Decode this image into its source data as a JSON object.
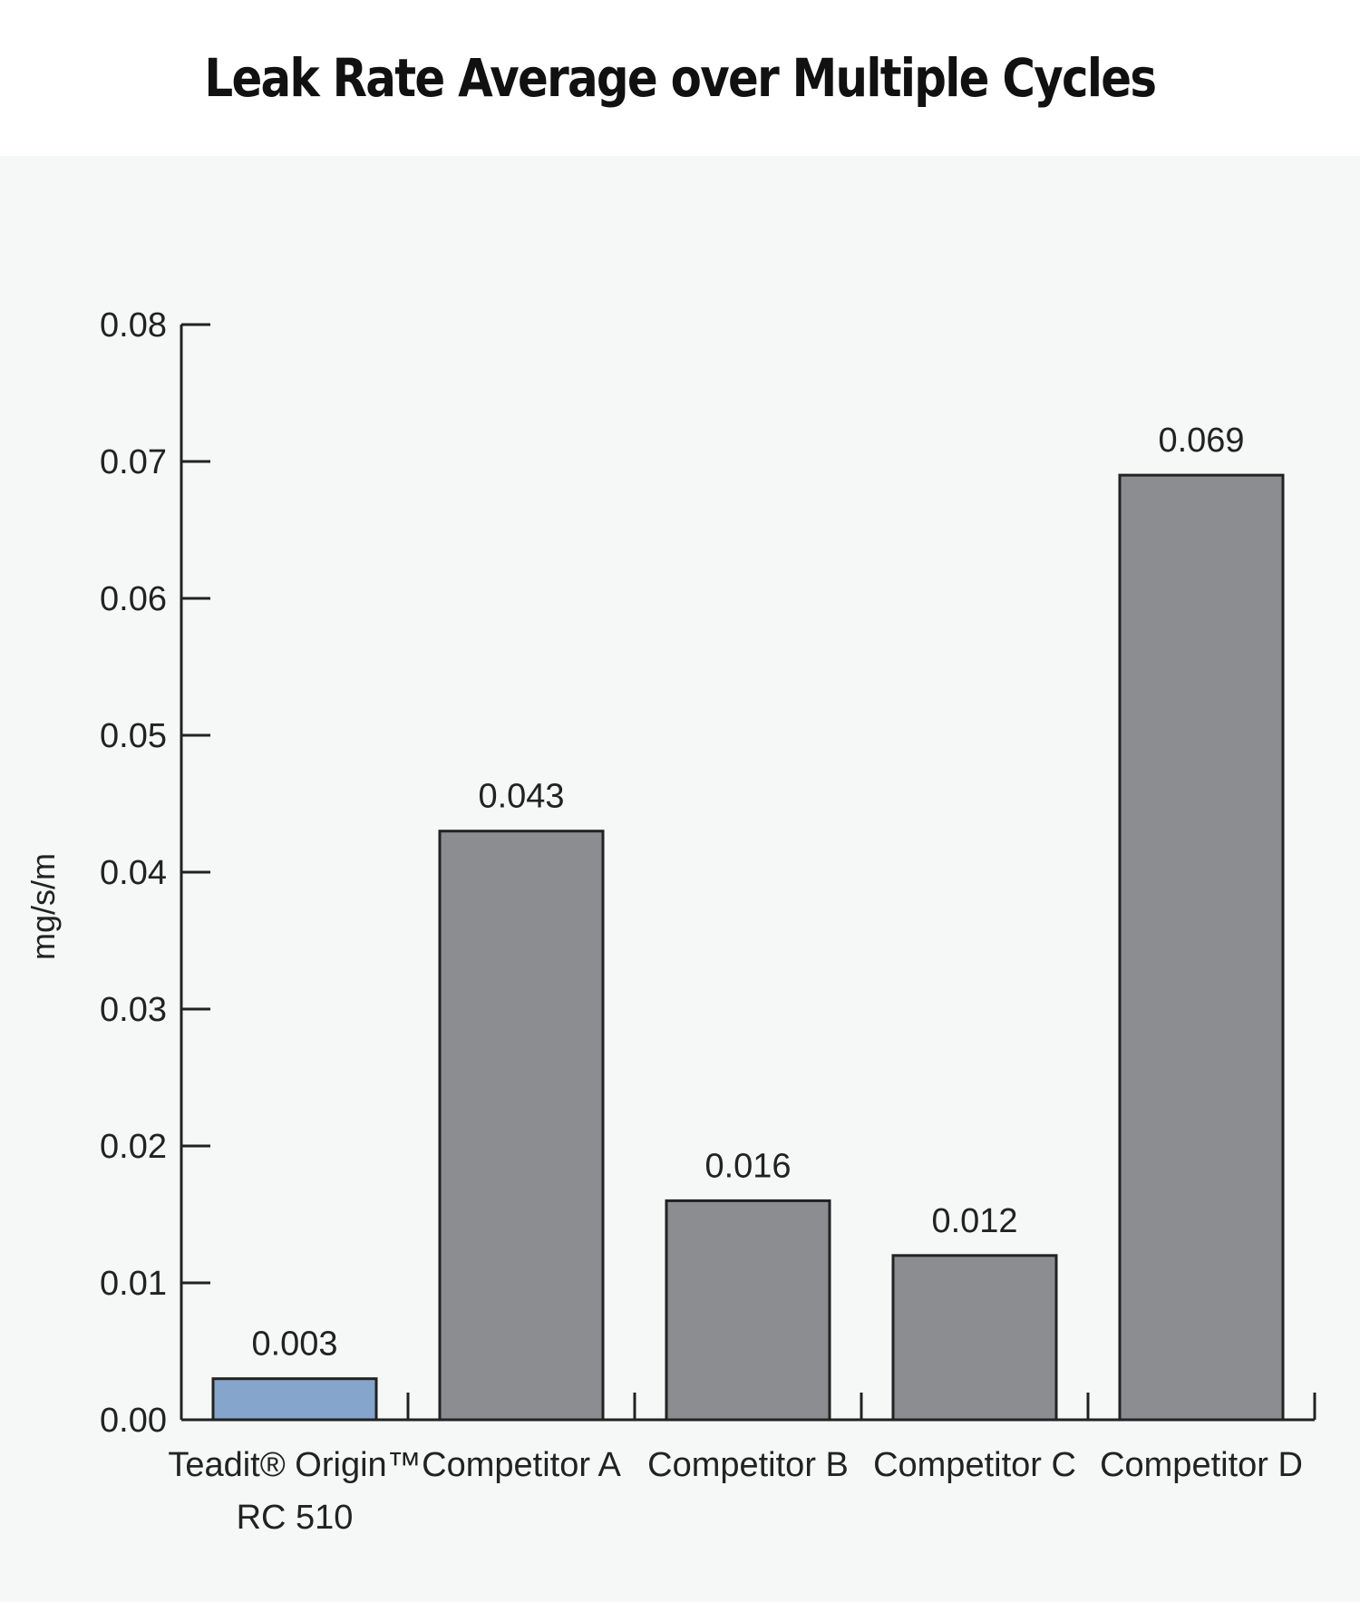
{
  "chart_data": {
    "type": "bar",
    "title": "Leak Rate Average over Multiple Cycles",
    "xlabel": "",
    "ylabel": "mg/s/m",
    "ylim": [
      0,
      0.08
    ],
    "yticks": [
      "0.00",
      "0.01",
      "0.02",
      "0.03",
      "0.04",
      "0.05",
      "0.06",
      "0.07",
      "0.08"
    ],
    "categories": [
      [
        "Teadit® Origin™",
        "RC 510"
      ],
      [
        "Competitor A"
      ],
      [
        "Competitor B"
      ],
      [
        "Competitor C"
      ],
      [
        "Competitor D"
      ]
    ],
    "values": [
      0.003,
      0.043,
      0.016,
      0.012,
      0.069
    ],
    "value_labels": [
      "0.003",
      "0.043",
      "0.016",
      "0.012",
      "0.069"
    ],
    "colors": [
      "#86a5cd",
      "#8c8d90",
      "#8c8d90",
      "#8c8d90",
      "#8c8d90"
    ],
    "grid": false,
    "legend": "none"
  }
}
